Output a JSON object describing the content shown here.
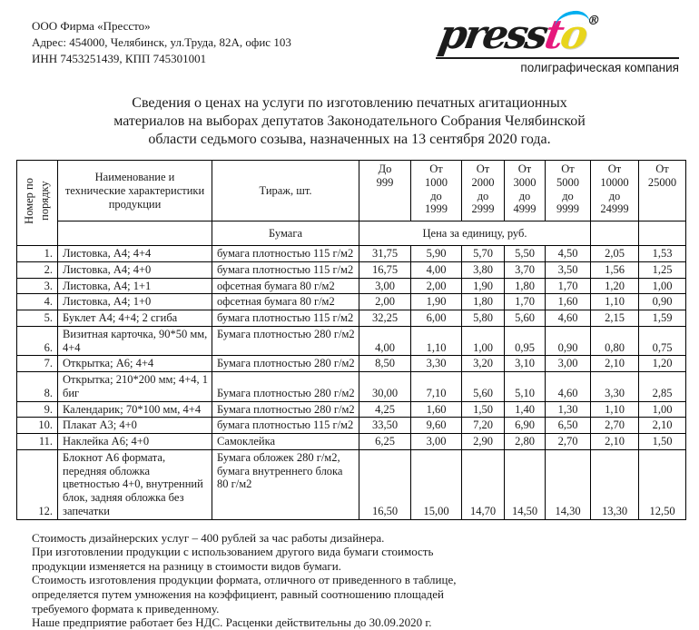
{
  "company": {
    "name": "ООО Фирма «Прессто»",
    "address": "Адрес: 454000, Челябинск, ул.Труда,  82А, офис 103",
    "inn_kpp": "ИНН 7453251439, КПП 745301001"
  },
  "logo": {
    "text_black": "press",
    "text_magenta": "t",
    "text_yellow": "o",
    "registered": "®",
    "tagline": "полиграфическая компания",
    "colors": {
      "cyan": "#00aeef",
      "magenta": "#e6187c",
      "yellow": "#e8d51d"
    }
  },
  "title": "Сведения о ценах на услуги по изготовлению печатных агитационных\nматериалов на выборах депутатов Законодательного Собрания Челябинской\nобласти седьмого созыва, назначенных на 13 сентября 2020 года.",
  "table": {
    "header": {
      "col_number": "Номер по\nпорядку",
      "col_name": "Наименование и\nтехнические\nхарактеристики продукции",
      "col_tirage": "Тираж, шт.",
      "col_paper": "Бумага",
      "price_note": "Цена за единицу, руб.",
      "tiers": [
        "До\n999",
        "От\n1000\nдо\n1999",
        "От\n2000\nдо\n2999",
        "От\n3000\nдо\n4999",
        "От\n5000\nдо\n9999",
        "От\n10000\nдо\n24999",
        "От\n25000"
      ]
    },
    "rows": [
      {
        "num": "1.",
        "name": "Листовка, А4; 4+4",
        "paper": "бумага плотностью 115 г/м2",
        "prices": [
          "31,75",
          "5,90",
          "5,70",
          "5,50",
          "4,50",
          "2,05",
          "1,53"
        ]
      },
      {
        "num": "2.",
        "name": "Листовка, А4; 4+0",
        "paper": "бумага плотностью 115 г/м2",
        "prices": [
          "16,75",
          "4,00",
          "3,80",
          "3,70",
          "3,50",
          "1,56",
          "1,25"
        ]
      },
      {
        "num": "3.",
        "name": "Листовка, А4; 1+1",
        "paper": "офсетная бумага 80 г/м2",
        "prices": [
          "3,00",
          "2,00",
          "1,90",
          "1,80",
          "1,70",
          "1,20",
          "1,00"
        ]
      },
      {
        "num": "4.",
        "name": "Листовка, А4; 1+0",
        "paper": "офсетная бумага 80 г/м2",
        "prices": [
          "2,00",
          "1,90",
          "1,80",
          "1,70",
          "1,60",
          "1,10",
          "0,90"
        ]
      },
      {
        "num": "5.",
        "name": "Буклет А4; 4+4; 2 сгиба",
        "paper": "бумага плотностью 115 г/м2",
        "prices": [
          "32,25",
          "6,00",
          "5,80",
          "5,60",
          "4,60",
          "2,15",
          "1,59"
        ]
      },
      {
        "num": "6.",
        "name": "Визитная карточка, 90*50 мм, 4+4",
        "paper": "Бумага плотностью 280 г/м2",
        "prices": [
          "4,00",
          "1,10",
          "1,00",
          "0,95",
          "0,90",
          "0,80",
          "0,75"
        ]
      },
      {
        "num": "7.",
        "name": "Открытка; А6; 4+4",
        "paper": "Бумага плотностью 280 г/м2",
        "prices": [
          "8,50",
          "3,30",
          "3,20",
          "3,10",
          "3,00",
          "2,10",
          "1,20"
        ]
      },
      {
        "num": "8.",
        "name": "Открытка; 210*200 мм; 4+4, 1 биг",
        "paper": "Бумага плотностью 280 г/м2",
        "prices": [
          "30,00",
          "7,10",
          "5,60",
          "5,10",
          "4,60",
          "3,30",
          "2,85"
        ]
      },
      {
        "num": "9.",
        "name": "Календарик; 70*100 мм, 4+4",
        "paper": "Бумага плотностью 280 г/м2",
        "prices": [
          "4,25",
          "1,60",
          "1,50",
          "1,40",
          "1,30",
          "1,10",
          "1,00"
        ]
      },
      {
        "num": "10.",
        "name": "Плакат А3; 4+0",
        "paper": "бумага плотностью 115 г/м2",
        "prices": [
          "33,50",
          "9,60",
          "7,20",
          "6,90",
          "6,50",
          "2,70",
          "2,10"
        ]
      },
      {
        "num": "11.",
        "name": "Наклейка А6; 4+0",
        "paper": "Самоклейка",
        "prices": [
          "6,25",
          "3,00",
          "2,90",
          "2,80",
          "2,70",
          "2,10",
          "1,50"
        ]
      },
      {
        "num": "12.",
        "name": "Блокнот А6 формата, передняя обложка цветностью 4+0, внутренний блок, задняя обложка без запечатки",
        "paper": "Бумага обложек 280 г/м2, бумага внутреннего блока 80 г/м2",
        "prices": [
          "16,50",
          "15,00",
          "14,70",
          "14,50",
          "14,30",
          "13,30",
          "12,50"
        ]
      }
    ]
  },
  "notes": [
    "Стоимость дизайнерских услуг – 400 рублей за час работы дизайнера.",
    "При изготовлении продукции с использованием другого вида бумаги стоимость",
    "продукции изменяется на разницу в стоимости видов бумаги.",
    "Стоимость изготовления продукции формата, отличного от приведенного в таблице,",
    "определяется путем умножения на коэффициент, равный соотношению площадей",
    "требуемого формата к приведенному.",
    "Наше предприятие работает без НДС. Расценки действительны до 30.09.2020 г."
  ]
}
